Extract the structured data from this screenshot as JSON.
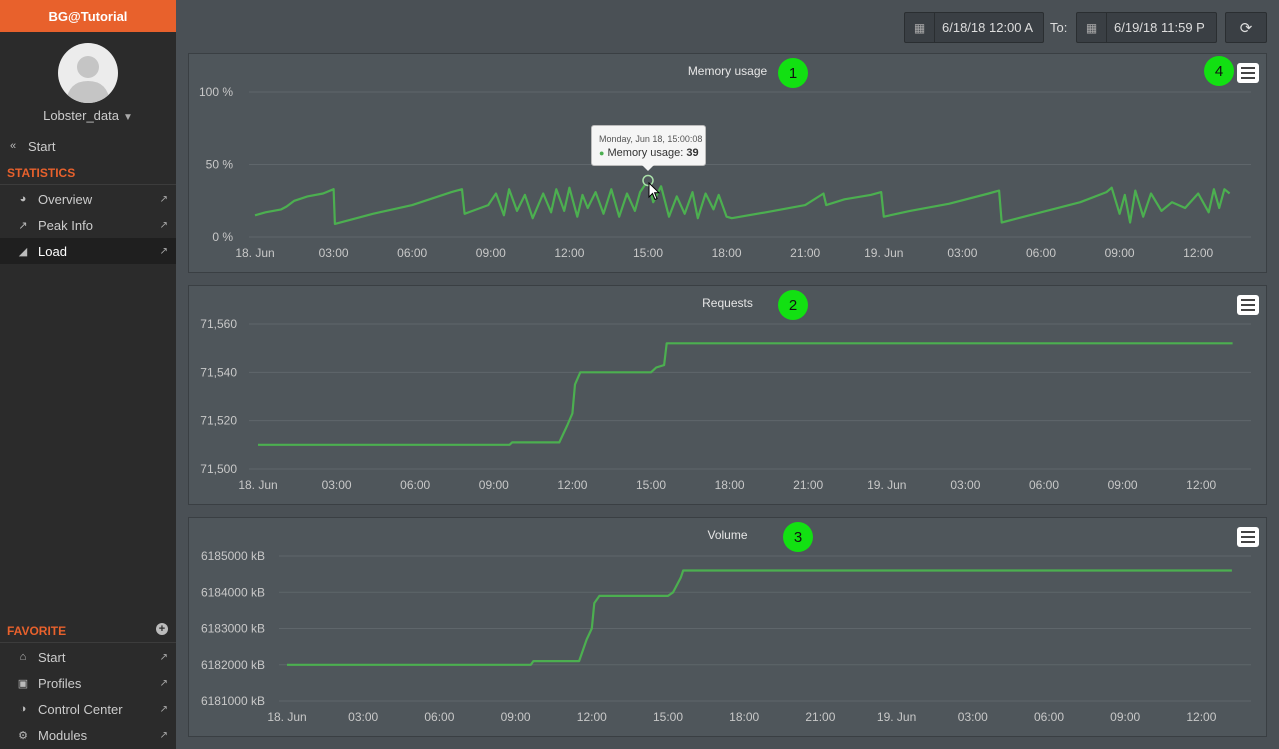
{
  "app": {
    "brand": "BG@Tutorial"
  },
  "user": {
    "name": "Lobster_data"
  },
  "nav": {
    "back": "Start",
    "statistics_header": "STATISTICS",
    "items": [
      {
        "label": "Overview",
        "icon": "pie-chart-icon",
        "active": false
      },
      {
        "label": "Peak Info",
        "icon": "line-chart-icon",
        "active": false
      },
      {
        "label": "Load",
        "icon": "area-chart-icon",
        "active": true
      }
    ],
    "favorite_header": "FAVORITE",
    "favorites": [
      {
        "label": "Start",
        "icon": "home-icon"
      },
      {
        "label": "Profiles",
        "icon": "chip-icon"
      },
      {
        "label": "Control Center",
        "icon": "dashboard-icon"
      },
      {
        "label": "Modules",
        "icon": "cogs-icon"
      }
    ]
  },
  "toolbar": {
    "from": "6/18/18 12:00 A",
    "to_label": "To:",
    "to": "6/19/18 11:59 P"
  },
  "badges": [
    "1",
    "2",
    "3",
    "4"
  ],
  "tooltip": {
    "date": "Monday, Jun 18, 15:00:08",
    "series": "Memory usage:",
    "value": "39"
  },
  "colors": {
    "line": "#4caf50",
    "accent": "#e8612c",
    "badge": "#12e012"
  },
  "chart_data": [
    {
      "type": "line",
      "title": "Memory usage",
      "x_ticks": [
        "18. Jun",
        "03:00",
        "06:00",
        "09:00",
        "12:00",
        "15:00",
        "18:00",
        "21:00",
        "19. Jun",
        "03:00",
        "06:00",
        "09:00",
        "12:00"
      ],
      "y_ticks": [
        "0 %",
        "50 %",
        "100 %"
      ],
      "ylim": [
        0,
        100
      ],
      "xlim": [
        0,
        37.5
      ],
      "series": [
        {
          "name": "Memory usage",
          "x": [
            0.0,
            0.4,
            1.0,
            1.2,
            1.5,
            2.0,
            2.6,
            3.0,
            3.05,
            4.5,
            6.0,
            7.5,
            7.9,
            8.0,
            8.3,
            8.9,
            9.2,
            9.5,
            9.7,
            10.0,
            10.3,
            10.6,
            11.0,
            11.3,
            11.5,
            11.8,
            12.0,
            12.3,
            12.5,
            12.7,
            13.0,
            13.3,
            13.6,
            13.9,
            14.2,
            14.5,
            14.7,
            15.0,
            15.2,
            15.5,
            15.8,
            16.1,
            16.4,
            16.7,
            16.9,
            17.2,
            17.5,
            17.7,
            18.0,
            18.2,
            19.5,
            21.0,
            21.7,
            21.8,
            22.5,
            23.5,
            23.9,
            24.0,
            25.0,
            26.5,
            28.0,
            28.4,
            28.5,
            30.0,
            31.5,
            32.5,
            32.7,
            33.0,
            33.2,
            33.4,
            33.6,
            33.9,
            34.2,
            34.6,
            35.0,
            35.5,
            36.0,
            36.4,
            36.6,
            36.8,
            37.0,
            37.2
          ],
          "y": [
            15,
            17,
            19,
            21,
            25,
            28,
            30,
            33,
            9,
            16,
            22,
            31,
            33,
            16,
            18,
            22,
            30,
            15,
            33,
            18,
            29,
            13,
            30,
            17,
            33,
            18,
            34,
            14,
            29,
            20,
            31,
            16,
            33,
            14,
            30,
            18,
            31,
            39,
            24,
            35,
            14,
            28,
            16,
            31,
            13,
            30,
            19,
            29,
            14,
            13,
            17,
            22,
            30,
            22,
            26,
            29,
            31,
            14,
            18,
            23,
            30,
            32,
            10,
            17,
            24,
            31,
            34,
            16,
            29,
            10,
            32,
            14,
            30,
            18,
            24,
            20,
            30,
            17,
            33,
            20,
            33,
            30
          ]
        }
      ]
    },
    {
      "type": "line",
      "title": "Requests",
      "x_ticks": [
        "18. Jun",
        "03:00",
        "06:00",
        "09:00",
        "12:00",
        "15:00",
        "18:00",
        "21:00",
        "19. Jun",
        "03:00",
        "06:00",
        "09:00",
        "12:00"
      ],
      "y_ticks": [
        "71,500",
        "71,520",
        "71,540",
        "71,560"
      ],
      "ylim": [
        71500,
        71560
      ],
      "xlim": [
        0,
        37.5
      ],
      "series": [
        {
          "name": "Requests",
          "x": [
            0.0,
            9.6,
            9.7,
            11.5,
            11.8,
            12.0,
            12.1,
            12.3,
            13.0,
            14.0,
            15.0,
            15.2,
            15.5,
            15.6,
            37.2
          ],
          "y": [
            71510,
            71510,
            71511,
            71511,
            71518,
            71523,
            71535,
            71540,
            71540,
            71540,
            71540,
            71542,
            71543,
            71552,
            71552
          ]
        }
      ]
    },
    {
      "type": "line",
      "title": "Volume",
      "x_ticks": [
        "18. Jun",
        "03:00",
        "06:00",
        "09:00",
        "12:00",
        "15:00",
        "18:00",
        "21:00",
        "19. Jun",
        "03:00",
        "06:00",
        "09:00",
        "12:00"
      ],
      "y_ticks": [
        "6181000 kB",
        "6182000 kB",
        "6183000 kB",
        "6184000 kB",
        "6185000 kB"
      ],
      "ylim": [
        6181000,
        6185000
      ],
      "xlim": [
        0,
        37.5
      ],
      "series": [
        {
          "name": "Volume",
          "x": [
            0.0,
            9.6,
            9.7,
            11.5,
            11.8,
            12.0,
            12.1,
            12.3,
            13.0,
            14.0,
            15.0,
            15.2,
            15.5,
            15.6,
            37.2
          ],
          "y": [
            6182000,
            6182000,
            6182100,
            6182100,
            6182700,
            6183000,
            6183700,
            6183900,
            6183900,
            6183900,
            6183900,
            6184000,
            6184400,
            6184600,
            6184600
          ]
        }
      ]
    }
  ]
}
